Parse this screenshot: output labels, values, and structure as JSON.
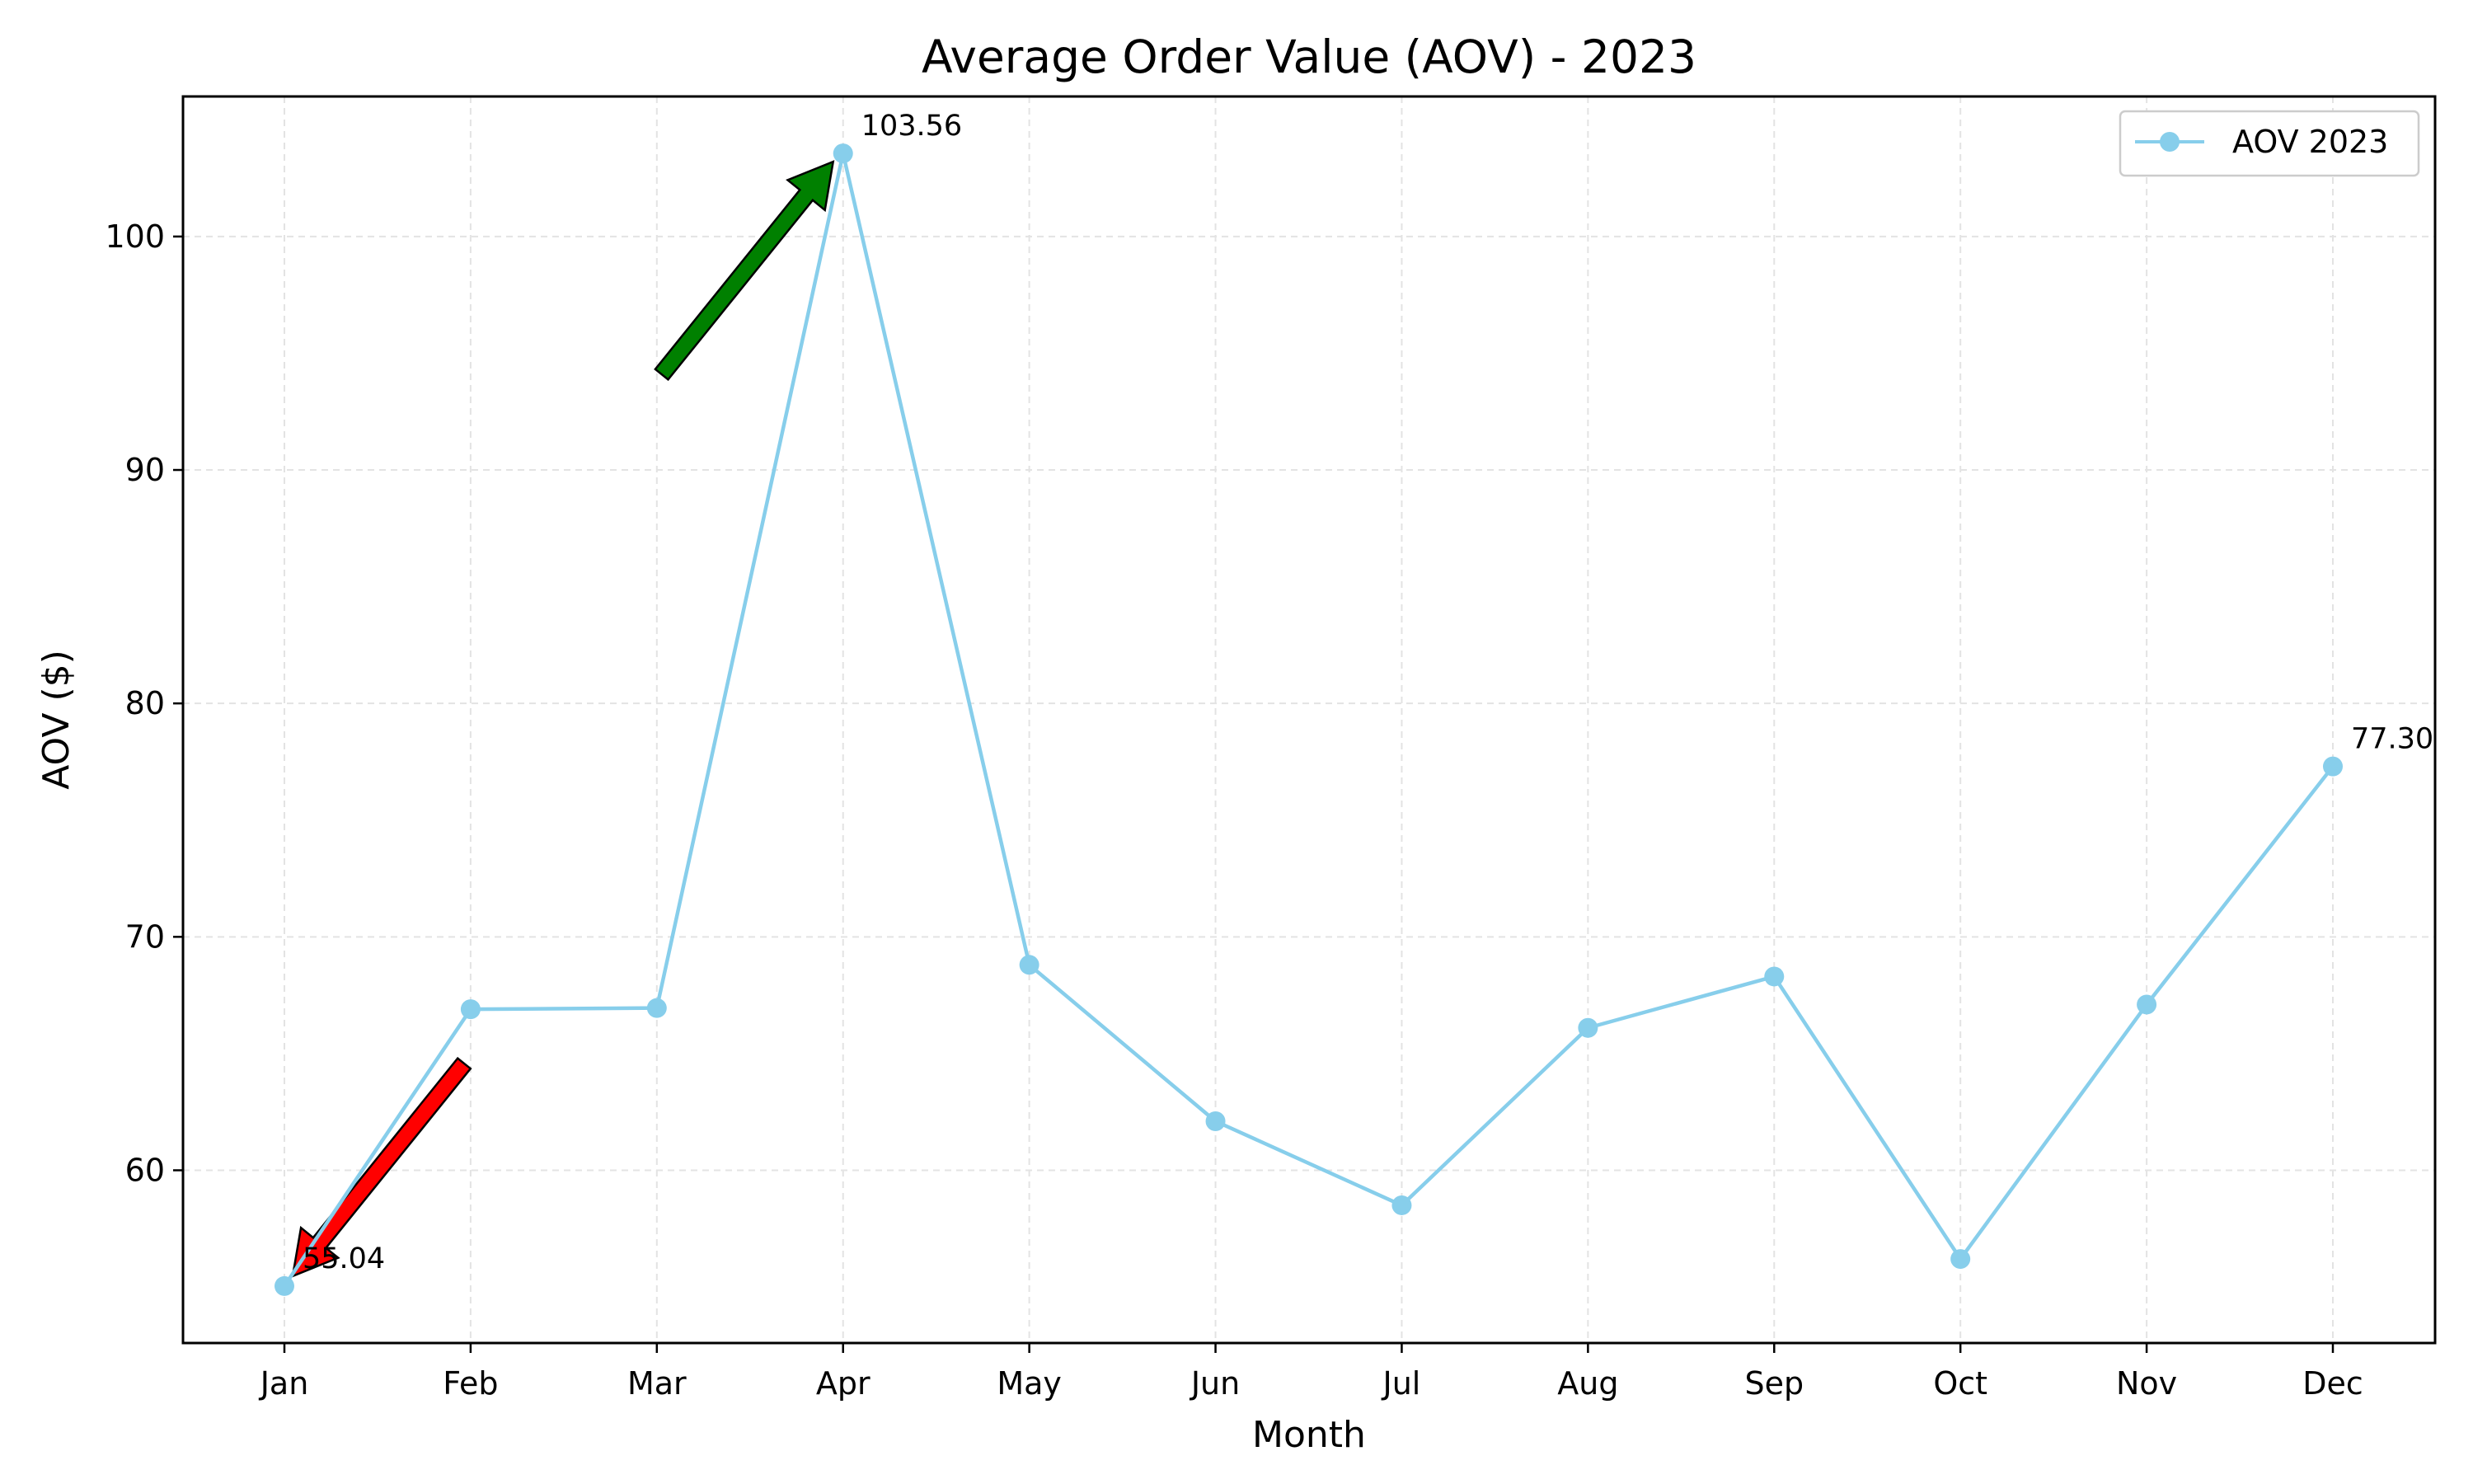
{
  "chart_data": {
    "type": "line",
    "title": "Average Order Value (AOV) - 2023",
    "xlabel": "Month",
    "ylabel": "AOV ($)",
    "categories": [
      "Jan",
      "Feb",
      "Mar",
      "Apr",
      "May",
      "Jun",
      "Jul",
      "Aug",
      "Sep",
      "Oct",
      "Nov",
      "Dec"
    ],
    "series": [
      {
        "name": "AOV 2023",
        "color": "#87ceeb",
        "values": [
          55.04,
          66.9,
          66.95,
          103.56,
          68.8,
          62.1,
          58.5,
          66.1,
          68.3,
          56.2,
          67.1,
          77.3
        ]
      }
    ],
    "ylim": [
      52.6,
      106.0
    ],
    "yticks": [
      60,
      70,
      80,
      90,
      100
    ],
    "grid": true,
    "legend": "top-right",
    "data_labels": [
      {
        "category": "Jan",
        "text": "55.04"
      },
      {
        "category": "Apr",
        "text": "103.56"
      },
      {
        "category": "Dec",
        "text": "77.30"
      }
    ],
    "annotations": [
      {
        "kind": "arrow",
        "color": "#ff0000",
        "target": "Jan",
        "meaning": "minimum"
      },
      {
        "kind": "arrow",
        "color": "#008000",
        "target": "Apr",
        "meaning": "maximum"
      }
    ]
  }
}
